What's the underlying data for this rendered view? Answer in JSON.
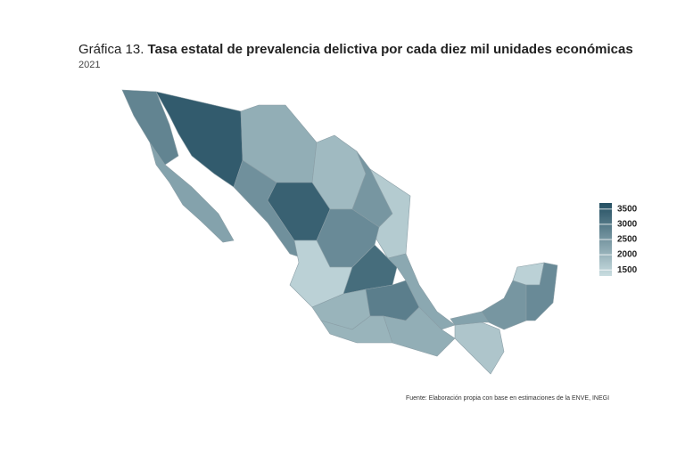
{
  "chart_data": {
    "type": "choropleth",
    "title_prefix": "Gráfica 13.",
    "title": "Tasa estatal de prevalencia delictiva por cada diez mil unidades económicas",
    "subtitle": "2021",
    "source": "Fuente: Elaboración propia con base en estimaciones de la ENVE, INEGI",
    "state_values": [
      2800,
      2300,
      3500,
      2100,
      1900,
      2500,
      1600,
      2600,
      3400,
      2700,
      1500,
      3200,
      2000,
      2900,
      2200,
      2000,
      2100,
      1700,
      2300,
      2500,
      1500,
      2700
    ],
    "color_low": "#c9dde0",
    "color_high": "#244f62",
    "clim": [
      1300,
      3700
    ],
    "cticks": [
      1500,
      2000,
      2500,
      3000,
      3500
    ]
  }
}
